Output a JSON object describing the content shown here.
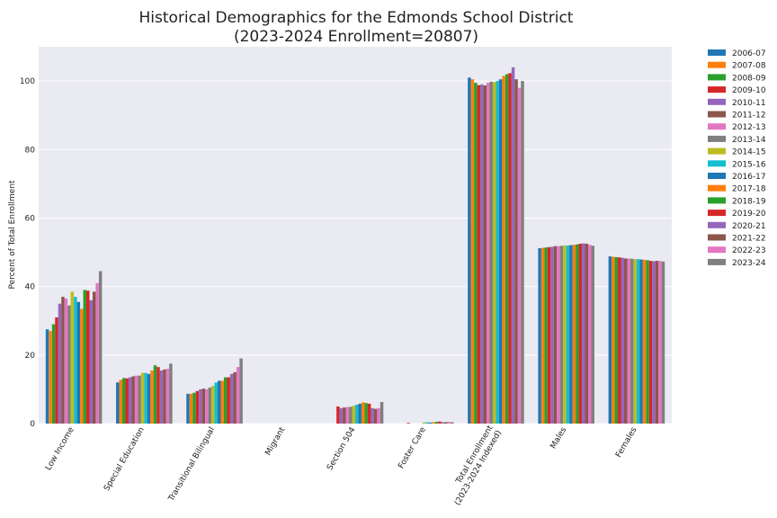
{
  "chart_data": {
    "type": "bar",
    "title": "Historical Demographics for the Edmonds School District",
    "subtitle": "(2023-2024 Enrollment=20807)",
    "ylabel": "Percent of Total Enrollment",
    "xlabel": "",
    "ylim": [
      0,
      110
    ],
    "yticks": [
      0,
      20,
      40,
      60,
      80,
      100
    ],
    "grid": true,
    "legend_position": "outside-right",
    "categories": [
      "Low Income",
      "Special Education",
      "Transitional Bilingual",
      "Migrant",
      "Section 504",
      "Foster Care",
      "Total Enrollment\n(2023-2024 Indexed)",
      "Males",
      "Females"
    ],
    "series": [
      {
        "name": "2006-07",
        "color": "#1f77b4",
        "values": [
          27.5,
          12.0,
          8.7,
          0,
          0,
          0,
          101.0,
          51.2,
          48.8
        ]
      },
      {
        "name": "2007-08",
        "color": "#ff7f0e",
        "values": [
          27.0,
          12.8,
          8.7,
          0,
          0,
          0,
          100.5,
          51.3,
          48.7
        ]
      },
      {
        "name": "2008-09",
        "color": "#2ca02c",
        "values": [
          29.0,
          13.3,
          9.0,
          0,
          0,
          0,
          99.5,
          51.4,
          48.6
        ]
      },
      {
        "name": "2009-10",
        "color": "#d62728",
        "values": [
          31.0,
          13.2,
          9.5,
          0,
          5.0,
          0.2,
          98.8,
          51.5,
          48.5
        ]
      },
      {
        "name": "2010-11",
        "color": "#9467bd",
        "values": [
          35.0,
          13.5,
          10.0,
          0,
          4.5,
          0,
          99.0,
          51.6,
          48.4
        ]
      },
      {
        "name": "2011-12",
        "color": "#8c564b",
        "values": [
          37.0,
          13.8,
          10.2,
          0,
          4.7,
          0,
          98.7,
          51.8,
          48.2
        ]
      },
      {
        "name": "2012-13",
        "color": "#e377c2",
        "values": [
          36.5,
          14.0,
          10.0,
          0,
          4.8,
          0,
          99.5,
          51.8,
          48.2
        ]
      },
      {
        "name": "2013-14",
        "color": "#7f7f7f",
        "values": [
          34.5,
          14.0,
          10.5,
          0,
          4.9,
          0,
          99.8,
          51.9,
          48.1
        ]
      },
      {
        "name": "2014-15",
        "color": "#bcbd22",
        "values": [
          38.5,
          14.8,
          11.0,
          0,
          5.2,
          0.3,
          99.7,
          52.0,
          48.0
        ]
      },
      {
        "name": "2015-16",
        "color": "#17becf",
        "values": [
          37.0,
          14.8,
          12.0,
          0,
          5.5,
          0.4,
          100.0,
          52.0,
          48.0
        ]
      },
      {
        "name": "2016-17",
        "color": "#1f77b4",
        "values": [
          35.5,
          14.5,
          12.5,
          0,
          5.8,
          0.3,
          100.5,
          52.1,
          47.9
        ]
      },
      {
        "name": "2017-18",
        "color": "#ff7f0e",
        "values": [
          33.5,
          15.5,
          12.5,
          0,
          6.2,
          0.4,
          101.5,
          52.2,
          47.8
        ]
      },
      {
        "name": "2018-19",
        "color": "#2ca02c",
        "values": [
          39.0,
          17.0,
          13.5,
          0,
          6.0,
          0.5,
          102.0,
          52.3,
          47.7
        ]
      },
      {
        "name": "2019-20",
        "color": "#d62728",
        "values": [
          38.8,
          16.5,
          13.5,
          0,
          5.8,
          0.6,
          102.3,
          52.5,
          47.5
        ]
      },
      {
        "name": "2020-21",
        "color": "#9467bd",
        "values": [
          36.0,
          15.5,
          14.5,
          0,
          4.5,
          0.4,
          104.0,
          52.6,
          47.4
        ]
      },
      {
        "name": "2021-22",
        "color": "#8c564b",
        "values": [
          38.5,
          15.8,
          15.0,
          0,
          4.3,
          0.4,
          100.5,
          52.5,
          47.5
        ]
      },
      {
        "name": "2022-23",
        "color": "#e377c2",
        "values": [
          41.0,
          16.0,
          16.5,
          0,
          4.5,
          0.5,
          98.0,
          52.2,
          47.5
        ]
      },
      {
        "name": "2023-24",
        "color": "#7f7f7f",
        "values": [
          44.5,
          17.5,
          19.0,
          0,
          6.3,
          0.4,
          100.0,
          51.9,
          47.3
        ]
      }
    ]
  }
}
